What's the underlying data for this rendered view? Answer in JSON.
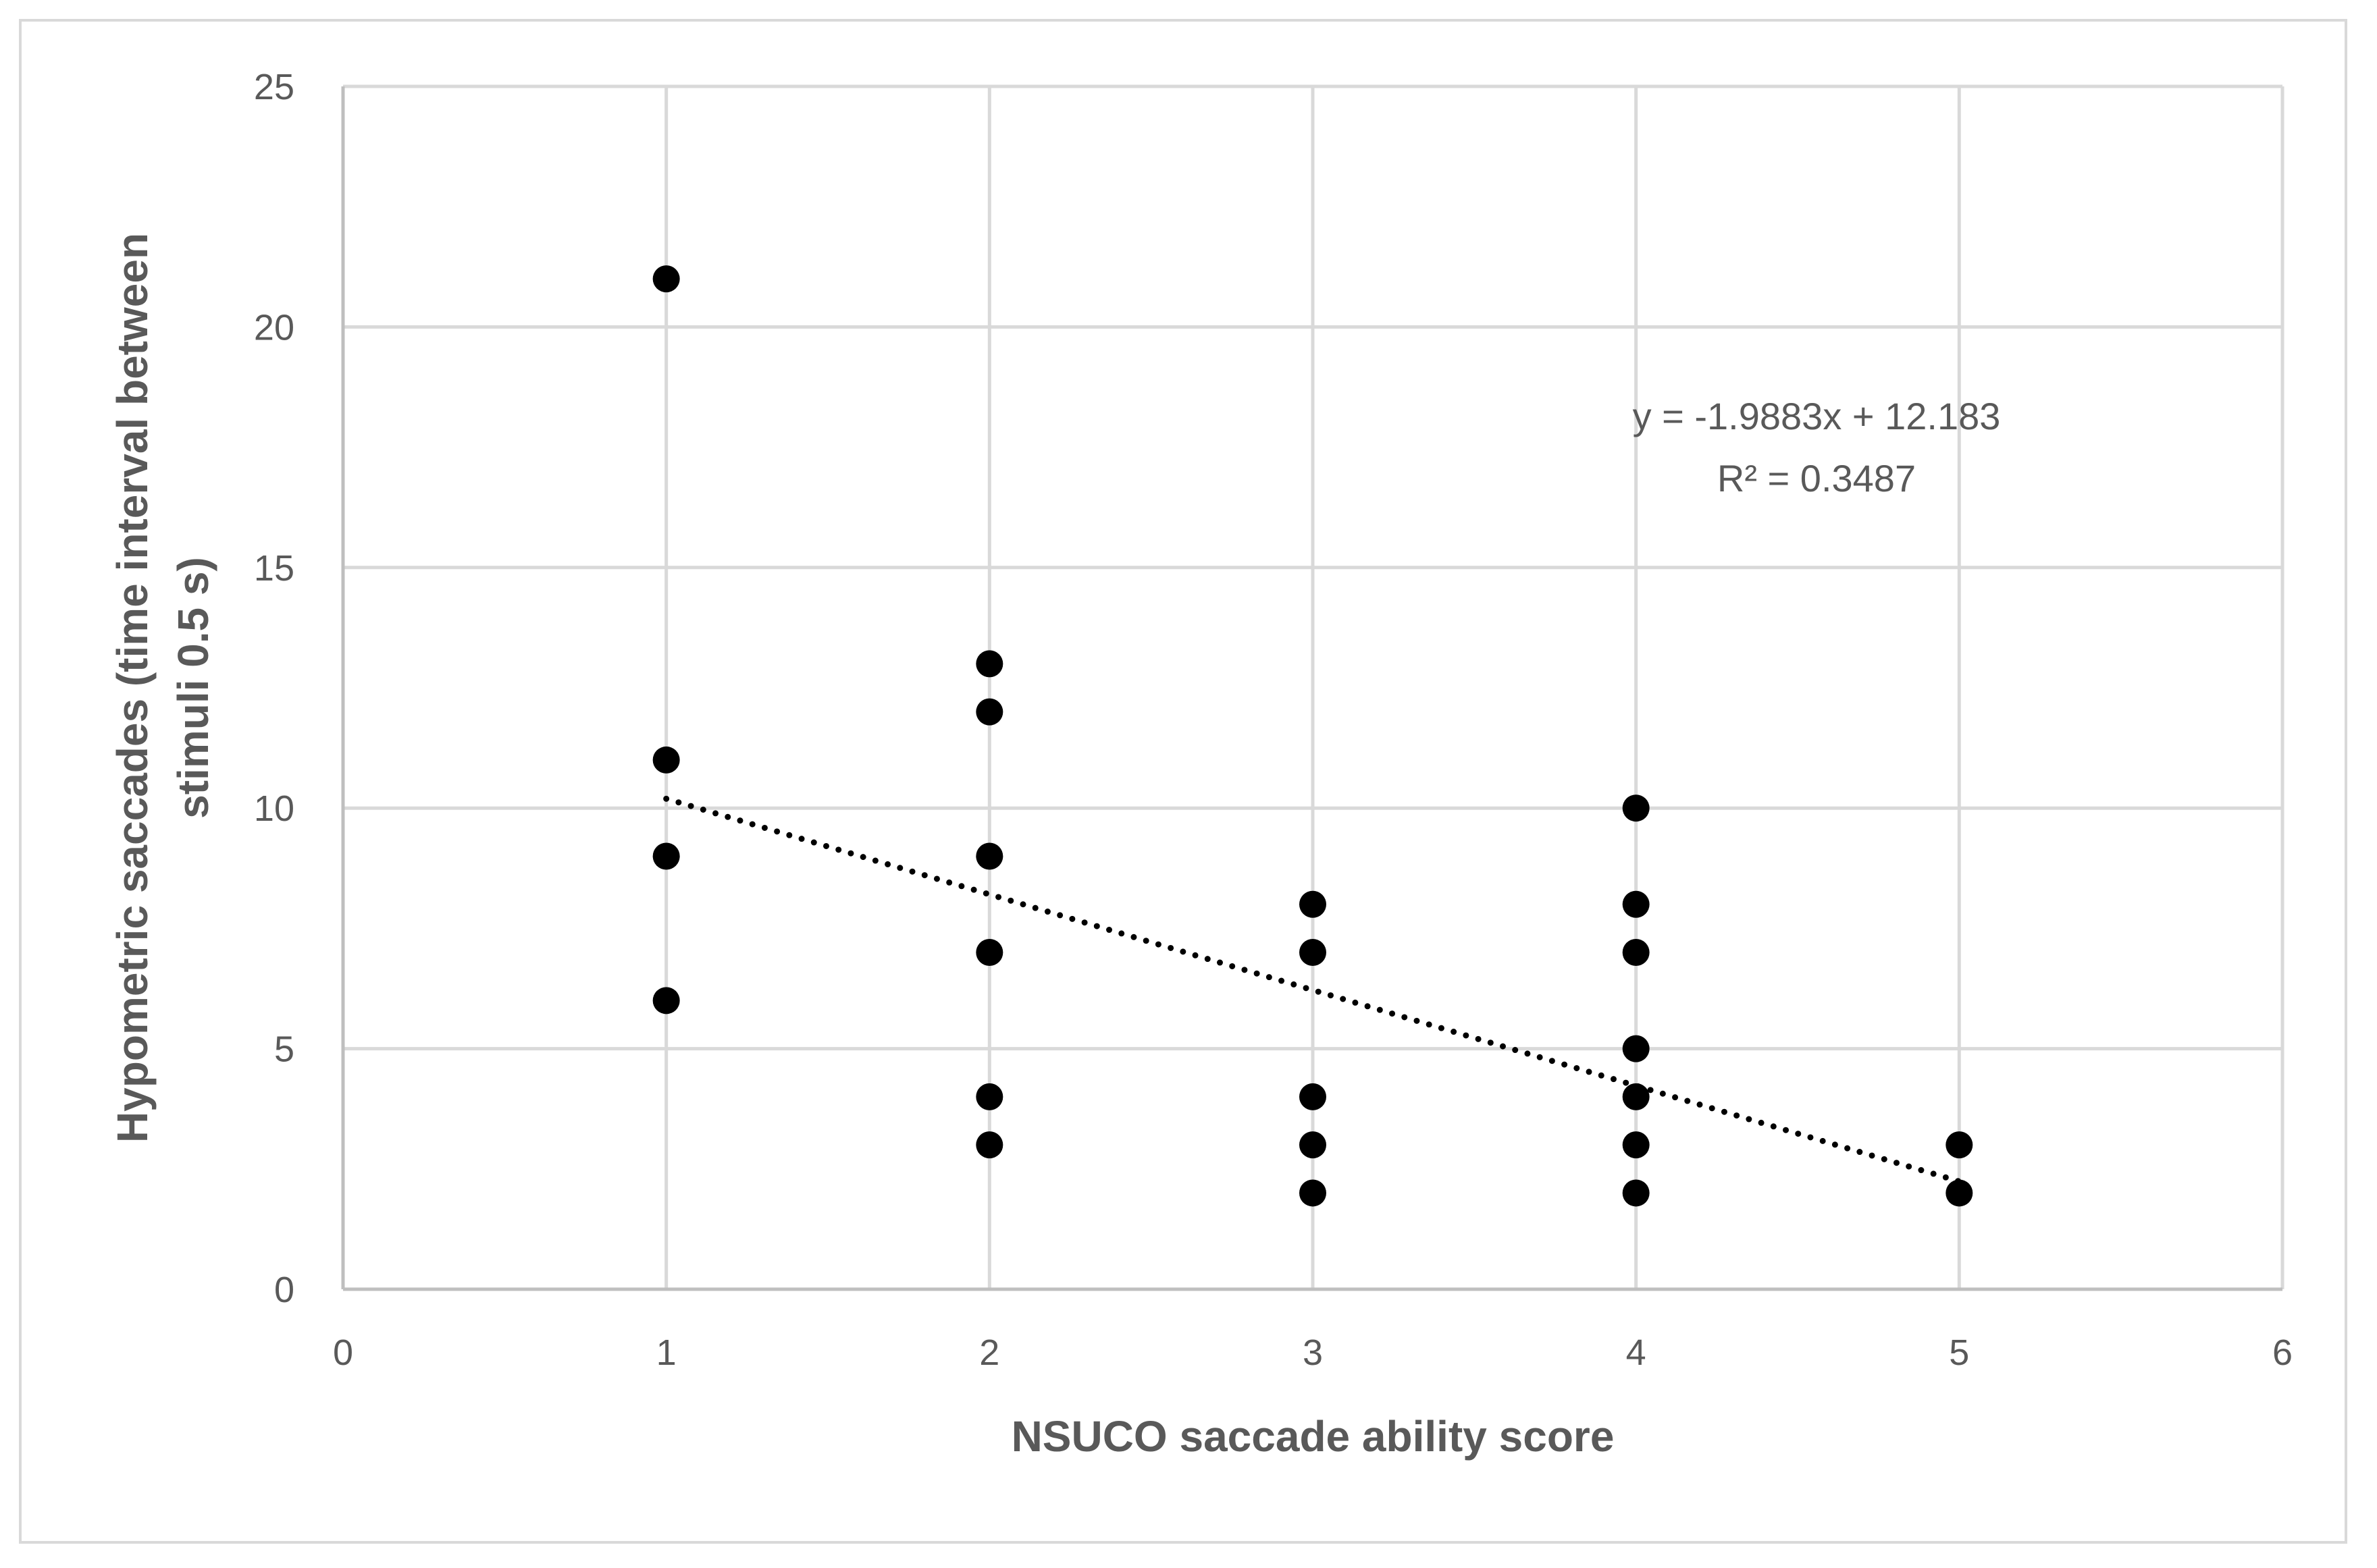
{
  "chart_data": {
    "type": "scatter",
    "title": "",
    "xlabel": "NSUCO saccade ability score",
    "ylabel_lines": [
      "Hypometric saccades (time interval between",
      "stimuli 0.5 s)"
    ],
    "xlim": [
      0,
      6
    ],
    "ylim": [
      0,
      25
    ],
    "x_ticks": [
      0,
      1,
      2,
      3,
      4,
      5,
      6
    ],
    "y_ticks": [
      0,
      5,
      10,
      15,
      20,
      25
    ],
    "x_tick_labels": [
      "0",
      "1",
      "2",
      "3",
      "4",
      "5",
      "6"
    ],
    "y_tick_labels": [
      "0",
      "5",
      "10",
      "15",
      "20",
      "25"
    ],
    "grid": true,
    "series": [
      {
        "name": "Hypometric saccades",
        "color": "#000000",
        "points": [
          {
            "x": 1,
            "y": 21
          },
          {
            "x": 1,
            "y": 11
          },
          {
            "x": 1,
            "y": 9
          },
          {
            "x": 1,
            "y": 6
          },
          {
            "x": 2,
            "y": 13
          },
          {
            "x": 2,
            "y": 12
          },
          {
            "x": 2,
            "y": 9
          },
          {
            "x": 2,
            "y": 7
          },
          {
            "x": 2,
            "y": 4
          },
          {
            "x": 2,
            "y": 3
          },
          {
            "x": 3,
            "y": 8
          },
          {
            "x": 3,
            "y": 7
          },
          {
            "x": 3,
            "y": 4
          },
          {
            "x": 3,
            "y": 3
          },
          {
            "x": 3,
            "y": 2
          },
          {
            "x": 4,
            "y": 10
          },
          {
            "x": 4,
            "y": 8
          },
          {
            "x": 4,
            "y": 7
          },
          {
            "x": 4,
            "y": 5
          },
          {
            "x": 4,
            "y": 4
          },
          {
            "x": 4,
            "y": 3
          },
          {
            "x": 4,
            "y": 2
          },
          {
            "x": 5,
            "y": 3
          },
          {
            "x": 5,
            "y": 2
          }
        ]
      }
    ],
    "trendline": {
      "type": "linear",
      "style": "dotted",
      "slope": -1.9883,
      "intercept": 12.183,
      "x_range": [
        1,
        5
      ],
      "equation_label": "y = -1.9883x + 12.183",
      "r2_label": "R² = 0.3487"
    }
  },
  "colors": {
    "grid": "#d9d9d9",
    "axis": "#bfbfbf",
    "text": "#595959",
    "marker": "#000000"
  }
}
